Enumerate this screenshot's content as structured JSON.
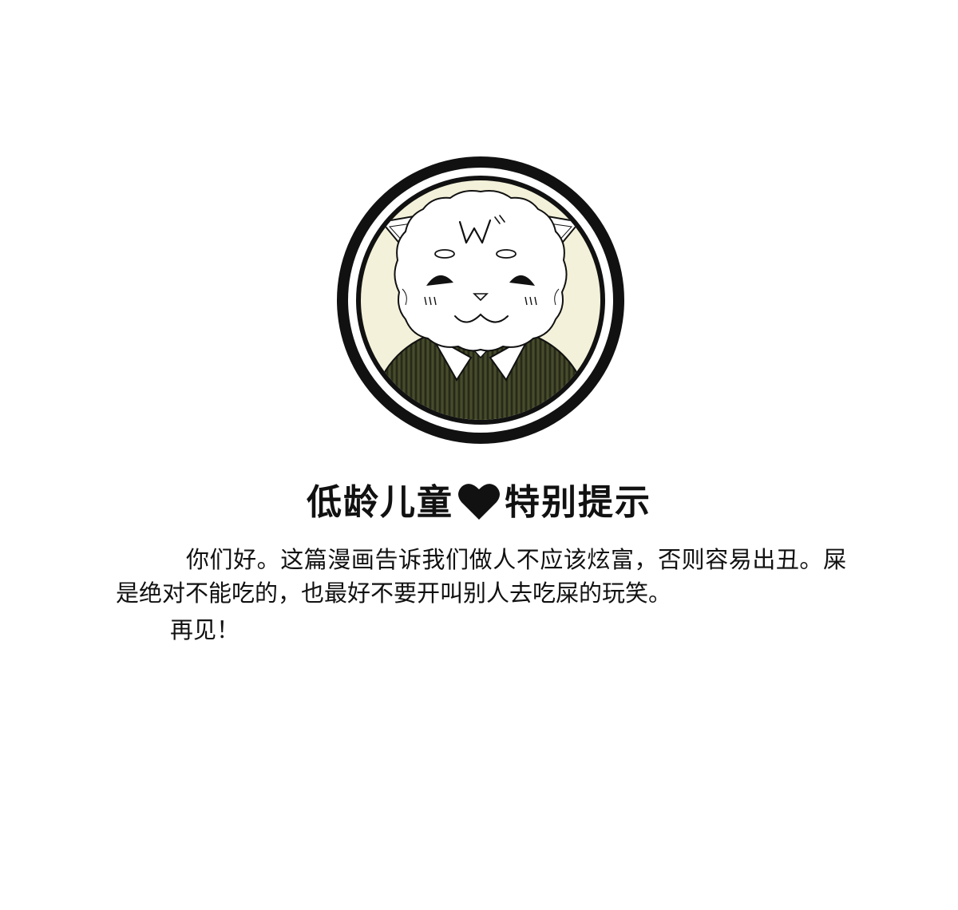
{
  "notice": {
    "title_left": "低龄儿童",
    "title_right": "特别提示",
    "heart_icon": "heart-icon",
    "paragraph_1": "你们好。这篇漫画告诉我们做人不应该炫富，否则容易出丑。屎是绝对不能吃的，也最好不要开叫别人去吃屎的玩笑。",
    "paragraph_2": "再见！"
  },
  "emblem": {
    "icon": "cat-mascot-icon",
    "colors": {
      "ring": "#111111",
      "background": "#f3f1d9",
      "vest": "#3b3f24",
      "fur": "#ffffff"
    }
  }
}
